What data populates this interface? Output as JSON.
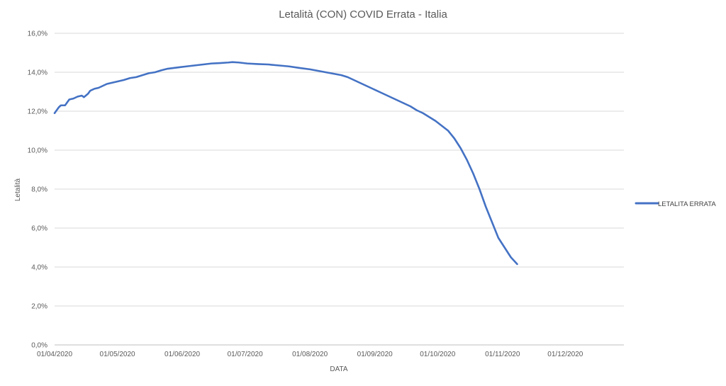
{
  "chart_data": {
    "type": "line",
    "title": "Letalità (CON) COVID Errata - Italia",
    "xlabel": "DATA",
    "ylabel": "Letalità",
    "x_tick_labels": [
      "01/04/2020",
      "01/05/2020",
      "01/06/2020",
      "01/07/2020",
      "01/08/2020",
      "01/09/2020",
      "01/10/2020",
      "01/11/2020",
      "01/12/2020"
    ],
    "y_tick_labels": [
      "0,0%",
      "2,0%",
      "4,0%",
      "6,0%",
      "8,0%",
      "10,0%",
      "12,0%",
      "14,0%",
      "16,0%"
    ],
    "xlim": [
      "2020-04-01",
      "2020-12-29"
    ],
    "ylim": [
      0,
      16
    ],
    "grid": "horizontal",
    "legend_position": "right",
    "series": [
      {
        "name": "LETALITA ERRATA",
        "color": "#4472c4",
        "points": [
          [
            "2020-04-01",
            11.9
          ],
          [
            "2020-04-02",
            12.05
          ],
          [
            "2020-04-03",
            12.2
          ],
          [
            "2020-04-04",
            12.3
          ],
          [
            "2020-04-06",
            12.3
          ],
          [
            "2020-04-07",
            12.45
          ],
          [
            "2020-04-08",
            12.6
          ],
          [
            "2020-04-10",
            12.65
          ],
          [
            "2020-04-12",
            12.75
          ],
          [
            "2020-04-14",
            12.8
          ],
          [
            "2020-04-15",
            12.72
          ],
          [
            "2020-04-17",
            12.9
          ],
          [
            "2020-04-18",
            13.05
          ],
          [
            "2020-04-20",
            13.15
          ],
          [
            "2020-04-22",
            13.2
          ],
          [
            "2020-04-24",
            13.3
          ],
          [
            "2020-04-26",
            13.4
          ],
          [
            "2020-04-28",
            13.45
          ],
          [
            "2020-04-30",
            13.5
          ],
          [
            "2020-05-02",
            13.55
          ],
          [
            "2020-05-04",
            13.6
          ],
          [
            "2020-05-07",
            13.7
          ],
          [
            "2020-05-10",
            13.75
          ],
          [
            "2020-05-13",
            13.85
          ],
          [
            "2020-05-16",
            13.95
          ],
          [
            "2020-05-19",
            14.0
          ],
          [
            "2020-05-22",
            14.1
          ],
          [
            "2020-05-25",
            14.18
          ],
          [
            "2020-05-28",
            14.22
          ],
          [
            "2020-05-31",
            14.26
          ],
          [
            "2020-06-03",
            14.3
          ],
          [
            "2020-06-07",
            14.35
          ],
          [
            "2020-06-11",
            14.4
          ],
          [
            "2020-06-15",
            14.45
          ],
          [
            "2020-06-19",
            14.47
          ],
          [
            "2020-06-23",
            14.5
          ],
          [
            "2020-06-25",
            14.52
          ],
          [
            "2020-06-28",
            14.5
          ],
          [
            "2020-07-02",
            14.45
          ],
          [
            "2020-07-07",
            14.42
          ],
          [
            "2020-07-12",
            14.4
          ],
          [
            "2020-07-17",
            14.35
          ],
          [
            "2020-07-22",
            14.3
          ],
          [
            "2020-07-27",
            14.22
          ],
          [
            "2020-08-01",
            14.15
          ],
          [
            "2020-08-06",
            14.05
          ],
          [
            "2020-08-11",
            13.95
          ],
          [
            "2020-08-16",
            13.85
          ],
          [
            "2020-08-19",
            13.75
          ],
          [
            "2020-08-22",
            13.6
          ],
          [
            "2020-08-25",
            13.45
          ],
          [
            "2020-08-28",
            13.3
          ],
          [
            "2020-08-31",
            13.15
          ],
          [
            "2020-09-03",
            13.0
          ],
          [
            "2020-09-06",
            12.85
          ],
          [
            "2020-09-09",
            12.7
          ],
          [
            "2020-09-12",
            12.55
          ],
          [
            "2020-09-15",
            12.4
          ],
          [
            "2020-09-18",
            12.25
          ],
          [
            "2020-09-21",
            12.05
          ],
          [
            "2020-09-24",
            11.9
          ],
          [
            "2020-09-27",
            11.7
          ],
          [
            "2020-09-30",
            11.5
          ],
          [
            "2020-10-03",
            11.25
          ],
          [
            "2020-10-06",
            11.0
          ],
          [
            "2020-10-09",
            10.6
          ],
          [
            "2020-10-12",
            10.1
          ],
          [
            "2020-10-15",
            9.5
          ],
          [
            "2020-10-18",
            8.8
          ],
          [
            "2020-10-21",
            8.0
          ],
          [
            "2020-10-24",
            7.1
          ],
          [
            "2020-10-27",
            6.3
          ],
          [
            "2020-10-30",
            5.5
          ],
          [
            "2020-11-02",
            5.0
          ],
          [
            "2020-11-05",
            4.5
          ],
          [
            "2020-11-08",
            4.15
          ]
        ]
      }
    ]
  }
}
